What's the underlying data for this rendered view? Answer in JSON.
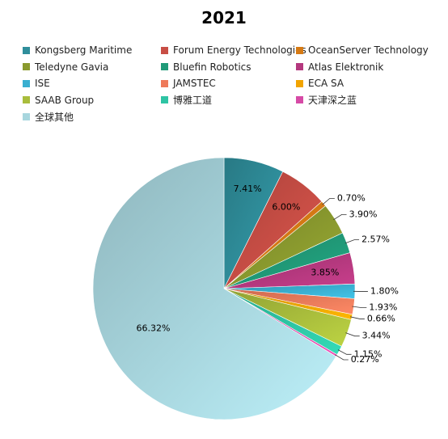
{
  "chart_data": {
    "type": "pie",
    "title": "2021",
    "legend_placement": "top",
    "slices": [
      {
        "name": "Kongsberg Maritime",
        "value": 7.41,
        "label": "7.41%",
        "color": "#2f8e9b"
      },
      {
        "name": "Forum Energy Technologies",
        "value": 6.0,
        "label": "6.00%",
        "color": "#c84e45"
      },
      {
        "name": "OceanServer Technology",
        "value": 0.7,
        "label": "0.70%",
        "color": "#d67a14"
      },
      {
        "name": "Teledyne Gavia",
        "value": 3.9,
        "label": "3.90%",
        "color": "#8a9a2e"
      },
      {
        "name": "Bluefin Robotics",
        "value": 2.57,
        "label": "2.57%",
        "color": "#209a78"
      },
      {
        "name": "Atlas Elektronik",
        "value": 3.85,
        "label": "3.85%",
        "color": "#b4387e"
      },
      {
        "name": "ISE",
        "value": 1.8,
        "label": "1.80%",
        "color": "#3aafd0"
      },
      {
        "name": "JAMSTEC",
        "value": 1.93,
        "label": "1.93%",
        "color": "#ee7a5a"
      },
      {
        "name": "ECA SA",
        "value": 0.66,
        "label": "0.66%",
        "color": "#f2a400"
      },
      {
        "name": "SAAB Group",
        "value": 3.44,
        "label": "3.44%",
        "color": "#a9bd3c"
      },
      {
        "name": "博雅工道",
        "value": 1.15,
        "label": "1.15%",
        "color": "#2ec4a4"
      },
      {
        "name": "天津深之蓝",
        "value": 0.27,
        "label": "0.27%",
        "color": "#d64aa6"
      },
      {
        "name": "全球其他",
        "value": 66.32,
        "label": "66.32%",
        "color": "#a8d6de"
      }
    ]
  }
}
